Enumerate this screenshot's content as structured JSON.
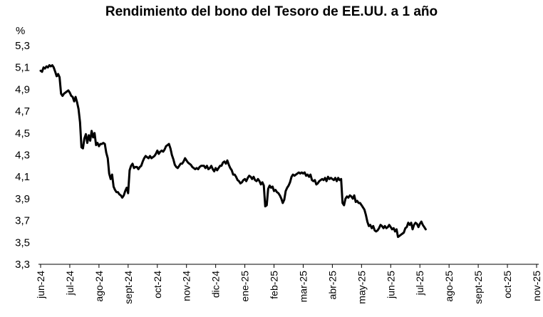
{
  "chart_data": {
    "type": "line",
    "title": "Rendimiento del bono del Tesoro de EE.UU. a 1 año",
    "ylabel": "%",
    "xlabel": "",
    "ylim": [
      3.3,
      5.3
    ],
    "yticks": [
      5.3,
      5.1,
      4.9,
      4.7,
      4.5,
      4.3,
      4.1,
      3.9,
      3.7,
      3.5,
      3.3
    ],
    "ytick_labels": [
      "5,3",
      "5,1",
      "4,9",
      "4,7",
      "4,5",
      "4,3",
      "4,1",
      "3,9",
      "3,7",
      "3,5",
      "3,3"
    ],
    "x_labels": [
      "jun-24",
      "jul-24",
      "ago-24",
      "sept-24",
      "oct-24",
      "nov-24",
      "dic-24",
      "ene-25",
      "feb-25",
      "mar-25",
      "abr-25",
      "may-25",
      "jun-25",
      "jul-25",
      "ago-25",
      "sept-25",
      "oct-25",
      "nov-25"
    ],
    "grid": false,
    "legend": "none",
    "line_color": "#000000",
    "series": [
      {
        "values": [
          [
            0.0,
            5.07
          ],
          [
            0.05,
            5.06
          ],
          [
            0.1,
            5.1
          ],
          [
            0.15,
            5.09
          ],
          [
            0.2,
            5.11
          ],
          [
            0.25,
            5.1
          ],
          [
            0.3,
            5.12
          ],
          [
            0.35,
            5.11
          ],
          [
            0.4,
            5.12
          ],
          [
            0.45,
            5.1
          ],
          [
            0.5,
            5.06
          ],
          [
            0.55,
            5.02
          ],
          [
            0.6,
            5.04
          ],
          [
            0.65,
            5.01
          ],
          [
            0.7,
            4.86
          ],
          [
            0.75,
            4.84
          ],
          [
            0.8,
            4.86
          ],
          [
            0.85,
            4.87
          ],
          [
            0.9,
            4.88
          ],
          [
            0.95,
            4.89
          ],
          [
            1.0,
            4.87
          ],
          [
            1.05,
            4.84
          ],
          [
            1.1,
            4.83
          ],
          [
            1.15,
            4.79
          ],
          [
            1.2,
            4.83
          ],
          [
            1.25,
            4.78
          ],
          [
            1.3,
            4.72
          ],
          [
            1.35,
            4.6
          ],
          [
            1.4,
            4.37
          ],
          [
            1.45,
            4.36
          ],
          [
            1.5,
            4.45
          ],
          [
            1.55,
            4.49
          ],
          [
            1.6,
            4.41
          ],
          [
            1.65,
            4.48
          ],
          [
            1.7,
            4.43
          ],
          [
            1.75,
            4.52
          ],
          [
            1.8,
            4.46
          ],
          [
            1.85,
            4.5
          ],
          [
            1.9,
            4.39
          ],
          [
            1.95,
            4.41
          ],
          [
            2.0,
            4.38
          ],
          [
            2.05,
            4.4
          ],
          [
            2.1,
            4.4
          ],
          [
            2.15,
            4.41
          ],
          [
            2.2,
            4.4
          ],
          [
            2.25,
            4.32
          ],
          [
            2.3,
            4.27
          ],
          [
            2.35,
            4.13
          ],
          [
            2.4,
            4.08
          ],
          [
            2.45,
            4.12
          ],
          [
            2.5,
            4.01
          ],
          [
            2.55,
            3.98
          ],
          [
            2.6,
            3.96
          ],
          [
            2.65,
            3.96
          ],
          [
            2.7,
            3.94
          ],
          [
            2.75,
            3.93
          ],
          [
            2.8,
            3.91
          ],
          [
            2.85,
            3.93
          ],
          [
            2.9,
            3.97
          ],
          [
            2.95,
            4.0
          ],
          [
            3.0,
            3.95
          ],
          [
            3.05,
            4.16
          ],
          [
            3.1,
            4.2
          ],
          [
            3.15,
            4.22
          ],
          [
            3.2,
            4.18
          ],
          [
            3.25,
            4.19
          ],
          [
            3.3,
            4.19
          ],
          [
            3.35,
            4.17
          ],
          [
            3.4,
            4.19
          ],
          [
            3.45,
            4.2
          ],
          [
            3.5,
            4.24
          ],
          [
            3.55,
            4.27
          ],
          [
            3.6,
            4.29
          ],
          [
            3.65,
            4.28
          ],
          [
            3.7,
            4.27
          ],
          [
            3.75,
            4.29
          ],
          [
            3.8,
            4.27
          ],
          [
            3.85,
            4.28
          ],
          [
            3.9,
            4.29
          ],
          [
            3.95,
            4.31
          ],
          [
            4.0,
            4.34
          ],
          [
            4.05,
            4.31
          ],
          [
            4.1,
            4.33
          ],
          [
            4.15,
            4.34
          ],
          [
            4.2,
            4.33
          ],
          [
            4.25,
            4.35
          ],
          [
            4.3,
            4.38
          ],
          [
            4.35,
            4.39
          ],
          [
            4.4,
            4.4
          ],
          [
            4.45,
            4.36
          ],
          [
            4.5,
            4.3
          ],
          [
            4.55,
            4.26
          ],
          [
            4.6,
            4.21
          ],
          [
            4.65,
            4.19
          ],
          [
            4.7,
            4.18
          ],
          [
            4.75,
            4.2
          ],
          [
            4.8,
            4.22
          ],
          [
            4.85,
            4.22
          ],
          [
            4.9,
            4.24
          ],
          [
            4.95,
            4.27
          ],
          [
            5.0,
            4.25
          ],
          [
            5.05,
            4.23
          ],
          [
            5.1,
            4.22
          ],
          [
            5.15,
            4.21
          ],
          [
            5.2,
            4.19
          ],
          [
            5.25,
            4.18
          ],
          [
            5.3,
            4.17
          ],
          [
            5.35,
            4.18
          ],
          [
            5.4,
            4.17
          ],
          [
            5.45,
            4.19
          ],
          [
            5.5,
            4.2
          ],
          [
            5.55,
            4.2
          ],
          [
            5.6,
            4.2
          ],
          [
            5.65,
            4.18
          ],
          [
            5.7,
            4.2
          ],
          [
            5.75,
            4.17
          ],
          [
            5.8,
            4.18
          ],
          [
            5.85,
            4.2
          ],
          [
            5.9,
            4.17
          ],
          [
            5.95,
            4.15
          ],
          [
            6.0,
            4.18
          ],
          [
            6.05,
            4.16
          ],
          [
            6.1,
            4.18
          ],
          [
            6.15,
            4.2
          ],
          [
            6.2,
            4.2
          ],
          [
            6.25,
            4.23
          ],
          [
            6.3,
            4.24
          ],
          [
            6.35,
            4.22
          ],
          [
            6.4,
            4.25
          ],
          [
            6.45,
            4.21
          ],
          [
            6.5,
            4.18
          ],
          [
            6.55,
            4.16
          ],
          [
            6.6,
            4.12
          ],
          [
            6.65,
            4.12
          ],
          [
            6.7,
            4.1
          ],
          [
            6.75,
            4.07
          ],
          [
            6.8,
            4.06
          ],
          [
            6.85,
            4.04
          ],
          [
            6.9,
            4.05
          ],
          [
            6.95,
            4.07
          ],
          [
            7.0,
            4.08
          ],
          [
            7.05,
            4.06
          ],
          [
            7.1,
            4.09
          ],
          [
            7.15,
            4.11
          ],
          [
            7.2,
            4.1
          ],
          [
            7.25,
            4.08
          ],
          [
            7.3,
            4.1
          ],
          [
            7.35,
            4.07
          ],
          [
            7.4,
            4.06
          ],
          [
            7.45,
            4.08
          ],
          [
            7.5,
            4.06
          ],
          [
            7.55,
            4.03
          ],
          [
            7.6,
            4.05
          ],
          [
            7.65,
            4.02
          ],
          [
            7.7,
            3.83
          ],
          [
            7.75,
            3.84
          ],
          [
            7.8,
            3.99
          ],
          [
            7.85,
            4.02
          ],
          [
            7.9,
            4.0
          ],
          [
            7.95,
            4.01
          ],
          [
            8.0,
            3.97
          ],
          [
            8.05,
            3.98
          ],
          [
            8.1,
            3.96
          ],
          [
            8.15,
            3.95
          ],
          [
            8.2,
            3.93
          ],
          [
            8.25,
            3.9
          ],
          [
            8.3,
            3.86
          ],
          [
            8.35,
            3.89
          ],
          [
            8.4,
            3.97
          ],
          [
            8.45,
            4.0
          ],
          [
            8.5,
            4.02
          ],
          [
            8.55,
            4.05
          ],
          [
            8.6,
            4.1
          ],
          [
            8.65,
            4.12
          ],
          [
            8.7,
            4.11
          ],
          [
            8.75,
            4.12
          ],
          [
            8.8,
            4.13
          ],
          [
            8.85,
            4.14
          ],
          [
            8.9,
            4.13
          ],
          [
            8.95,
            4.14
          ],
          [
            9.0,
            4.13
          ],
          [
            9.05,
            4.14
          ],
          [
            9.1,
            4.11
          ],
          [
            9.15,
            4.12
          ],
          [
            9.2,
            4.1
          ],
          [
            9.25,
            4.12
          ],
          [
            9.3,
            4.07
          ],
          [
            9.35,
            4.06
          ],
          [
            9.4,
            4.07
          ],
          [
            9.45,
            4.03
          ],
          [
            9.5,
            4.04
          ],
          [
            9.55,
            4.06
          ],
          [
            9.6,
            4.07
          ],
          [
            9.65,
            4.08
          ],
          [
            9.7,
            4.07
          ],
          [
            9.75,
            4.09
          ],
          [
            9.8,
            4.06
          ],
          [
            9.85,
            4.1
          ],
          [
            9.9,
            4.08
          ],
          [
            9.95,
            4.09
          ],
          [
            10.0,
            4.08
          ],
          [
            10.05,
            4.07
          ],
          [
            10.1,
            4.09
          ],
          [
            10.15,
            4.06
          ],
          [
            10.2,
            4.09
          ],
          [
            10.25,
            4.07
          ],
          [
            10.3,
            4.08
          ],
          [
            10.35,
            3.86
          ],
          [
            10.4,
            3.84
          ],
          [
            10.45,
            3.9
          ],
          [
            10.5,
            3.92
          ],
          [
            10.55,
            3.91
          ],
          [
            10.6,
            3.93
          ],
          [
            10.65,
            3.92
          ],
          [
            10.7,
            3.9
          ],
          [
            10.75,
            3.93
          ],
          [
            10.8,
            3.87
          ],
          [
            10.85,
            3.88
          ],
          [
            10.9,
            3.86
          ],
          [
            10.95,
            3.86
          ],
          [
            11.0,
            3.84
          ],
          [
            11.05,
            3.82
          ],
          [
            11.1,
            3.8
          ],
          [
            11.15,
            3.75
          ],
          [
            11.2,
            3.69
          ],
          [
            11.25,
            3.65
          ],
          [
            11.3,
            3.66
          ],
          [
            11.35,
            3.63
          ],
          [
            11.4,
            3.65
          ],
          [
            11.45,
            3.61
          ],
          [
            11.5,
            3.6
          ],
          [
            11.55,
            3.61
          ],
          [
            11.6,
            3.63
          ],
          [
            11.65,
            3.66
          ],
          [
            11.7,
            3.65
          ],
          [
            11.75,
            3.63
          ],
          [
            11.8,
            3.65
          ],
          [
            11.85,
            3.63
          ],
          [
            11.9,
            3.64
          ],
          [
            11.95,
            3.66
          ],
          [
            12.0,
            3.64
          ],
          [
            12.05,
            3.62
          ],
          [
            12.1,
            3.63
          ],
          [
            12.15,
            3.6
          ],
          [
            12.2,
            3.62
          ],
          [
            12.25,
            3.55
          ],
          [
            12.3,
            3.56
          ],
          [
            12.35,
            3.57
          ],
          [
            12.4,
            3.58
          ],
          [
            12.45,
            3.59
          ],
          [
            12.5,
            3.63
          ],
          [
            12.55,
            3.64
          ],
          [
            12.6,
            3.68
          ],
          [
            12.65,
            3.66
          ],
          [
            12.7,
            3.68
          ],
          [
            12.75,
            3.62
          ],
          [
            12.8,
            3.66
          ],
          [
            12.85,
            3.68
          ],
          [
            12.9,
            3.67
          ],
          [
            12.95,
            3.64
          ],
          [
            13.0,
            3.67
          ],
          [
            13.05,
            3.69
          ],
          [
            13.1,
            3.66
          ],
          [
            13.15,
            3.64
          ],
          [
            13.2,
            3.62
          ]
        ]
      }
    ]
  }
}
